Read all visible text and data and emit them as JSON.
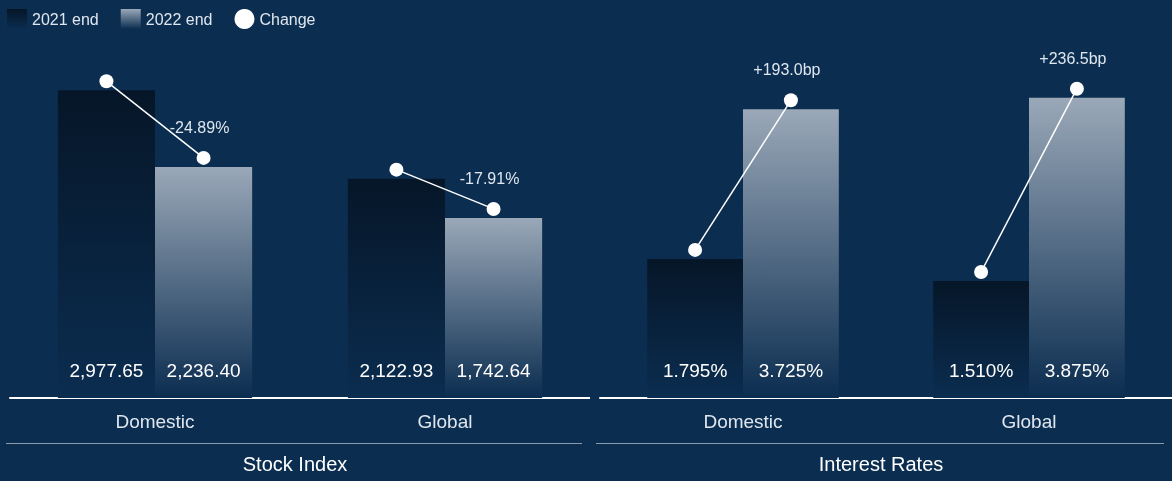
{
  "chart_data": [
    {
      "type": "bar",
      "title": "Stock Index",
      "categories": [
        "Domestic",
        "Global"
      ],
      "legend": "top left",
      "series": [
        {
          "name": "2021 end",
          "color": "#061628",
          "values": [
            2977.65,
            2122.93
          ],
          "value_labels": [
            "2,977.65",
            "2,122.93"
          ]
        },
        {
          "name": "2022 end",
          "color": "#9aa8b8",
          "values": [
            2236.4,
            1742.64
          ],
          "value_labels": [
            "2,236.40",
            "1,742.64"
          ]
        },
        {
          "name": "Change",
          "type": "line",
          "color": "#ffffff",
          "values": [
            null,
            null
          ]
        }
      ],
      "annotations": [
        {
          "text": "-24.89%",
          "x": "Domestic",
          "y": 2236.4
        },
        {
          "text": "-17.91%",
          "x": "Global",
          "y": 1742.64
        }
      ]
    },
    {
      "type": "bar",
      "title": "Interest Rates",
      "categories": [
        "Domestic",
        "Global"
      ],
      "series": [
        {
          "color": "#061628",
          "values": [
            1.795,
            1.51
          ],
          "value_labels": [
            "1.795%",
            "1.510%"
          ]
        },
        {
          "color": "#9aa8b8",
          "values": [
            3.725,
            3.875
          ],
          "value_labels": [
            "3.725%",
            "3.875%"
          ]
        }
      ],
      "annotations": [
        {
          "text": "+193.0bp",
          "x": "Domestic",
          "y": 3.725
        },
        {
          "text": "+236.5bp",
          "x": "Global",
          "y": 3.875
        }
      ]
    }
  ]
}
